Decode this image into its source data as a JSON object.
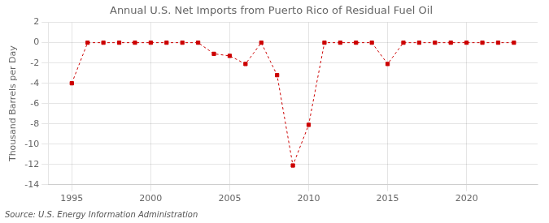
{
  "chart_data": {
    "type": "line",
    "title": "Annual U.S. Net Imports from Puerto Rico of Residual Fuel Oil",
    "ylabel": "Thousand Barrels per Day",
    "annotations": [
      "Source: U.S. Energy Information Administration"
    ],
    "x": [
      1995,
      1996,
      1997,
      1998,
      1999,
      2000,
      2001,
      2002,
      2003,
      2004,
      2005,
      2006,
      2007,
      2008,
      2009,
      2010,
      2011,
      2012,
      2013,
      2014,
      2015,
      2016,
      2017,
      2018,
      2019,
      2020,
      2021,
      2022,
      2023
    ],
    "values": [
      -4,
      0,
      0,
      0,
      0,
      0,
      0,
      0,
      0,
      -1.1,
      -1.3,
      -2.1,
      0,
      -3.2,
      -12.1,
      -8.1,
      0,
      0,
      0,
      0,
      -2.1,
      0,
      0,
      0,
      0,
      0,
      0,
      0,
      0
    ],
    "xlim": [
      1993.5,
      2024.5
    ],
    "xticks": [
      1995,
      2000,
      2005,
      2010,
      2015,
      2020
    ],
    "ylim": [
      -14,
      2
    ],
    "yticks": [
      2,
      0,
      -2,
      -4,
      -6,
      -8,
      -10,
      -12,
      -14
    ],
    "color": "#cc0000",
    "marker": "square",
    "line_style": "dashed",
    "grid": true
  }
}
